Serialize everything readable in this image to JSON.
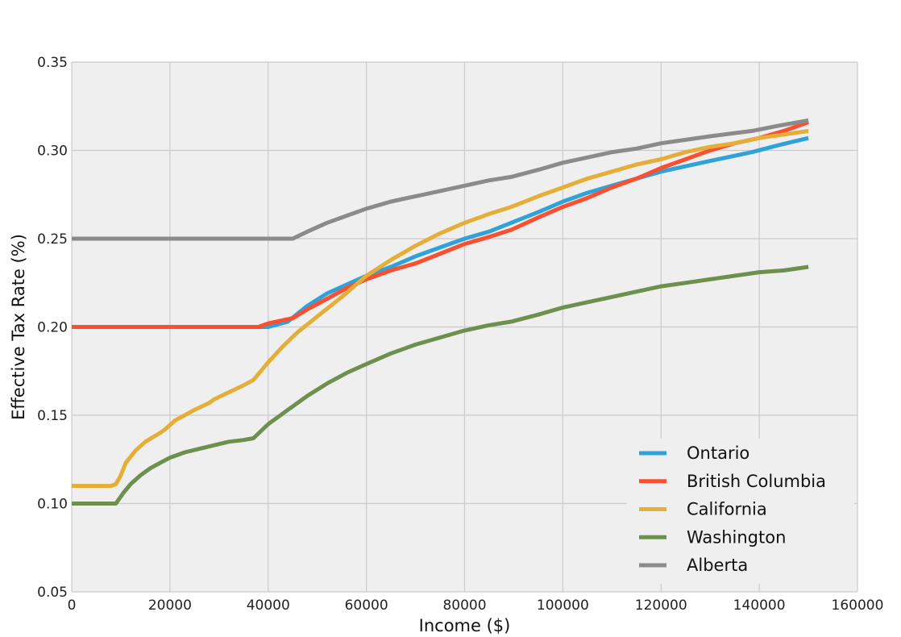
{
  "chart_data": {
    "type": "line",
    "title": "",
    "xlabel": "Income ($)",
    "ylabel": "Effective Tax Rate (%)",
    "xlim": [
      0,
      160000
    ],
    "ylim": [
      0.05,
      0.35
    ],
    "xticks": [
      0,
      20000,
      40000,
      60000,
      80000,
      100000,
      120000,
      140000,
      160000
    ],
    "yticks": [
      0.05,
      0.1,
      0.15,
      0.2,
      0.25,
      0.3,
      0.35
    ],
    "xtick_labels": [
      "0",
      "20000",
      "40000",
      "60000",
      "80000",
      "100000",
      "120000",
      "140000",
      "160000"
    ],
    "ytick_labels": [
      "0.05",
      "0.10",
      "0.15",
      "0.20",
      "0.25",
      "0.30",
      "0.35"
    ],
    "grid": true,
    "legend_position": "bottom-right",
    "colors": {
      "plot_background": "#efefef",
      "grid": "#cbcbcb",
      "ontario": "#30a2da",
      "british_columbia": "#fc4f30",
      "california": "#e5ae38",
      "washington": "#6d904f",
      "alberta": "#8b8b8b"
    },
    "series": [
      {
        "name": "Ontario",
        "color": "#30a2da",
        "points": [
          [
            0,
            0.2
          ],
          [
            38000,
            0.2
          ],
          [
            40000,
            0.2
          ],
          [
            44000,
            0.203
          ],
          [
            48000,
            0.212
          ],
          [
            52000,
            0.219
          ],
          [
            56000,
            0.224
          ],
          [
            60000,
            0.229
          ],
          [
            65000,
            0.234
          ],
          [
            70000,
            0.24
          ],
          [
            75000,
            0.245
          ],
          [
            80000,
            0.25
          ],
          [
            85000,
            0.254
          ],
          [
            89500,
            0.259
          ],
          [
            95000,
            0.265
          ],
          [
            100000,
            0.271
          ],
          [
            105000,
            0.276
          ],
          [
            110000,
            0.28
          ],
          [
            115000,
            0.284
          ],
          [
            120000,
            0.288
          ],
          [
            125000,
            0.291
          ],
          [
            130000,
            0.294
          ],
          [
            138500,
            0.299
          ],
          [
            144000,
            0.303
          ],
          [
            150000,
            0.307
          ]
        ]
      },
      {
        "name": "British Columbia",
        "color": "#fc4f30",
        "points": [
          [
            0,
            0.2
          ],
          [
            38000,
            0.2
          ],
          [
            40000,
            0.202
          ],
          [
            45000,
            0.205
          ],
          [
            48000,
            0.21
          ],
          [
            52000,
            0.216
          ],
          [
            56000,
            0.222
          ],
          [
            60000,
            0.227
          ],
          [
            65000,
            0.232
          ],
          [
            70000,
            0.236
          ],
          [
            75500,
            0.242
          ],
          [
            80000,
            0.247
          ],
          [
            85000,
            0.251
          ],
          [
            89500,
            0.255
          ],
          [
            95000,
            0.262
          ],
          [
            100000,
            0.268
          ],
          [
            105000,
            0.273
          ],
          [
            110000,
            0.279
          ],
          [
            115000,
            0.284
          ],
          [
            120000,
            0.29
          ],
          [
            125000,
            0.295
          ],
          [
            130000,
            0.3
          ],
          [
            135000,
            0.304
          ],
          [
            140000,
            0.307
          ],
          [
            145000,
            0.311
          ],
          [
            150000,
            0.316
          ]
        ]
      },
      {
        "name": "California",
        "color": "#e5ae38",
        "points": [
          [
            0,
            0.11
          ],
          [
            8000,
            0.11
          ],
          [
            9000,
            0.111
          ],
          [
            10000,
            0.116
          ],
          [
            11000,
            0.123
          ],
          [
            13000,
            0.13
          ],
          [
            15000,
            0.135
          ],
          [
            18000,
            0.14
          ],
          [
            19000,
            0.142
          ],
          [
            21000,
            0.147
          ],
          [
            23000,
            0.15
          ],
          [
            25000,
            0.153
          ],
          [
            28000,
            0.157
          ],
          [
            29000,
            0.159
          ],
          [
            32000,
            0.163
          ],
          [
            35000,
            0.167
          ],
          [
            37000,
            0.17
          ],
          [
            40000,
            0.18
          ],
          [
            43000,
            0.189
          ],
          [
            46000,
            0.197
          ],
          [
            50000,
            0.206
          ],
          [
            55000,
            0.217
          ],
          [
            60000,
            0.229
          ],
          [
            65000,
            0.238
          ],
          [
            70000,
            0.246
          ],
          [
            75000,
            0.253
          ],
          [
            80000,
            0.259
          ],
          [
            85000,
            0.264
          ],
          [
            89500,
            0.268
          ],
          [
            95000,
            0.274
          ],
          [
            100000,
            0.279
          ],
          [
            105000,
            0.284
          ],
          [
            110000,
            0.288
          ],
          [
            115000,
            0.292
          ],
          [
            120000,
            0.295
          ],
          [
            125000,
            0.299
          ],
          [
            130000,
            0.302
          ],
          [
            135000,
            0.304
          ],
          [
            140000,
            0.307
          ],
          [
            145000,
            0.309
          ],
          [
            150000,
            0.311
          ]
        ]
      },
      {
        "name": "Washington",
        "color": "#6d904f",
        "points": [
          [
            0,
            0.1
          ],
          [
            9000,
            0.1
          ],
          [
            9500,
            0.102
          ],
          [
            10500,
            0.106
          ],
          [
            12000,
            0.111
          ],
          [
            14000,
            0.116
          ],
          [
            16000,
            0.12
          ],
          [
            18000,
            0.123
          ],
          [
            20000,
            0.126
          ],
          [
            23000,
            0.129
          ],
          [
            26000,
            0.131
          ],
          [
            29000,
            0.133
          ],
          [
            32000,
            0.135
          ],
          [
            35000,
            0.136
          ],
          [
            37000,
            0.137
          ],
          [
            40000,
            0.145
          ],
          [
            44000,
            0.153
          ],
          [
            48000,
            0.161
          ],
          [
            52000,
            0.168
          ],
          [
            56000,
            0.174
          ],
          [
            60000,
            0.179
          ],
          [
            65000,
            0.185
          ],
          [
            70000,
            0.19
          ],
          [
            75000,
            0.194
          ],
          [
            80000,
            0.198
          ],
          [
            85000,
            0.201
          ],
          [
            89500,
            0.203
          ],
          [
            95000,
            0.207
          ],
          [
            100000,
            0.211
          ],
          [
            105000,
            0.214
          ],
          [
            110000,
            0.217
          ],
          [
            115000,
            0.22
          ],
          [
            120000,
            0.223
          ],
          [
            125000,
            0.225
          ],
          [
            130000,
            0.227
          ],
          [
            135000,
            0.229
          ],
          [
            140000,
            0.231
          ],
          [
            145000,
            0.232
          ],
          [
            150000,
            0.234
          ]
        ]
      },
      {
        "name": "Alberta",
        "color": "#8b8b8b",
        "points": [
          [
            0,
            0.25
          ],
          [
            45000,
            0.25
          ],
          [
            48000,
            0.254
          ],
          [
            52000,
            0.259
          ],
          [
            56000,
            0.263
          ],
          [
            60000,
            0.267
          ],
          [
            65000,
            0.271
          ],
          [
            70000,
            0.274
          ],
          [
            75000,
            0.277
          ],
          [
            80000,
            0.28
          ],
          [
            85000,
            0.283
          ],
          [
            89500,
            0.285
          ],
          [
            95000,
            0.289
          ],
          [
            100000,
            0.293
          ],
          [
            105000,
            0.296
          ],
          [
            110000,
            0.299
          ],
          [
            115000,
            0.301
          ],
          [
            120000,
            0.304
          ],
          [
            125000,
            0.306
          ],
          [
            130000,
            0.308
          ],
          [
            138500,
            0.311
          ],
          [
            144000,
            0.314
          ],
          [
            150000,
            0.317
          ]
        ]
      }
    ]
  }
}
